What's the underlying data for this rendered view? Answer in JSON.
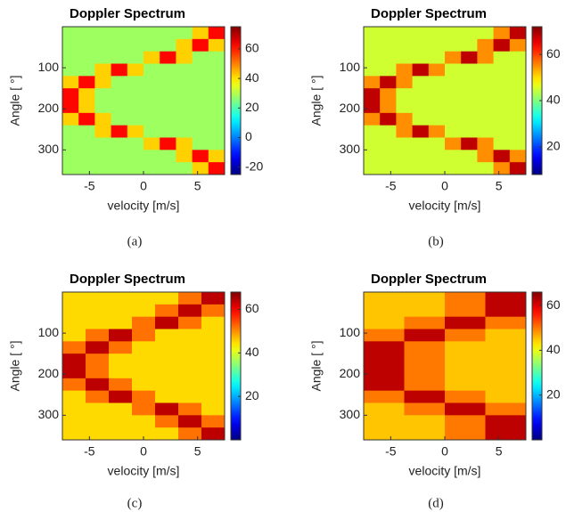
{
  "chart_data": [
    {
      "type": "heatmap",
      "title": "Doppler Spectrum",
      "x_label": "velocity [m/s]",
      "y_label": "Angle [ °]",
      "caption": "(a)",
      "xlim": [
        -7.5,
        7.5
      ],
      "xticks": [
        -5,
        0,
        5
      ],
      "ylim": [
        0,
        360
      ],
      "yticks": [
        100,
        200,
        300
      ],
      "y_inverted": true,
      "clim": [
        -25,
        75
      ],
      "cticks": [
        -20,
        0,
        20,
        40,
        60
      ],
      "values": [
        [
          28,
          28,
          28,
          28,
          28,
          28,
          28,
          28,
          42,
          62
        ],
        [
          28,
          28,
          28,
          28,
          28,
          28,
          28,
          42,
          62,
          42
        ],
        [
          28,
          28,
          28,
          28,
          28,
          42,
          62,
          42,
          28,
          28
        ],
        [
          28,
          28,
          42,
          62,
          42,
          28,
          28,
          28,
          28,
          28
        ],
        [
          42,
          62,
          42,
          28,
          28,
          28,
          28,
          28,
          28,
          28
        ],
        [
          62,
          42,
          28,
          28,
          28,
          28,
          28,
          28,
          28,
          28
        ],
        [
          62,
          42,
          28,
          28,
          28,
          28,
          28,
          28,
          28,
          28
        ],
        [
          42,
          62,
          42,
          28,
          28,
          28,
          28,
          28,
          28,
          28
        ],
        [
          28,
          28,
          42,
          62,
          42,
          28,
          28,
          28,
          28,
          28
        ],
        [
          28,
          28,
          28,
          28,
          28,
          42,
          62,
          42,
          28,
          28
        ],
        [
          28,
          28,
          28,
          28,
          28,
          28,
          28,
          42,
          62,
          42
        ],
        [
          28,
          28,
          28,
          28,
          28,
          28,
          28,
          28,
          42,
          62
        ]
      ]
    },
    {
      "type": "heatmap",
      "title": "Doppler Spectrum",
      "x_label": "velocity [m/s]",
      "y_label": "Angle [ °]",
      "caption": "(b)",
      "xlim": [
        -7.5,
        7.5
      ],
      "xticks": [
        -5,
        0,
        5
      ],
      "ylim": [
        0,
        360
      ],
      "yticks": [
        100,
        200,
        300
      ],
      "y_inverted": true,
      "clim": [
        8,
        72
      ],
      "cticks": [
        20,
        40,
        60
      ],
      "values": [
        [
          45,
          45,
          45,
          45,
          45,
          45,
          45,
          45,
          55,
          68
        ],
        [
          45,
          45,
          45,
          45,
          45,
          45,
          45,
          55,
          68,
          55
        ],
        [
          45,
          45,
          45,
          45,
          45,
          55,
          68,
          55,
          45,
          45
        ],
        [
          45,
          45,
          55,
          68,
          55,
          45,
          45,
          45,
          45,
          45
        ],
        [
          55,
          68,
          55,
          45,
          45,
          45,
          45,
          45,
          45,
          45
        ],
        [
          68,
          55,
          45,
          45,
          45,
          45,
          45,
          45,
          45,
          45
        ],
        [
          68,
          55,
          45,
          45,
          45,
          45,
          45,
          45,
          45,
          45
        ],
        [
          55,
          68,
          55,
          45,
          45,
          45,
          45,
          45,
          45,
          45
        ],
        [
          45,
          45,
          55,
          68,
          55,
          45,
          45,
          45,
          45,
          45
        ],
        [
          45,
          45,
          45,
          45,
          45,
          55,
          68,
          55,
          45,
          45
        ],
        [
          45,
          45,
          45,
          45,
          45,
          45,
          45,
          55,
          68,
          55
        ],
        [
          45,
          45,
          45,
          45,
          45,
          45,
          45,
          45,
          55,
          68
        ]
      ]
    },
    {
      "type": "heatmap",
      "title": "Doppler Spectrum",
      "x_label": "velocity [m/s]",
      "y_label": "Angle [ °]",
      "caption": "(c)",
      "xlim": [
        -7.5,
        7.5
      ],
      "xticks": [
        -5,
        0,
        5
      ],
      "ylim": [
        0,
        360
      ],
      "yticks": [
        100,
        200,
        300
      ],
      "y_inverted": true,
      "clim": [
        0,
        68
      ],
      "cticks": [
        20,
        40,
        60
      ],
      "values": [
        [
          45,
          45,
          45,
          45,
          45,
          52,
          64
        ],
        [
          45,
          45,
          45,
          45,
          52,
          64,
          52
        ],
        [
          45,
          45,
          45,
          52,
          64,
          52,
          45
        ],
        [
          45,
          52,
          64,
          52,
          45,
          45,
          45
        ],
        [
          52,
          64,
          52,
          45,
          45,
          45,
          45
        ],
        [
          64,
          52,
          45,
          45,
          45,
          45,
          45
        ],
        [
          64,
          52,
          45,
          45,
          45,
          45,
          45
        ],
        [
          52,
          64,
          52,
          45,
          45,
          45,
          45
        ],
        [
          45,
          52,
          64,
          52,
          45,
          45,
          45
        ],
        [
          45,
          45,
          45,
          52,
          64,
          52,
          45
        ],
        [
          45,
          45,
          45,
          45,
          52,
          64,
          52
        ],
        [
          45,
          45,
          45,
          45,
          45,
          52,
          64
        ]
      ]
    },
    {
      "type": "heatmap",
      "title": "Doppler Spectrum",
      "x_label": "velocity [m/s]",
      "y_label": "Angle [ °]",
      "caption": "(d)",
      "xlim": [
        -7.5,
        7.5
      ],
      "xticks": [
        -5,
        0,
        5
      ],
      "ylim": [
        0,
        360
      ],
      "yticks": [
        100,
        200,
        300
      ],
      "y_inverted": true,
      "clim": [
        0,
        66
      ],
      "cticks": [
        20,
        40,
        60
      ],
      "values": [
        [
          45,
          45,
          50,
          62
        ],
        [
          45,
          45,
          50,
          62
        ],
        [
          45,
          50,
          62,
          50
        ],
        [
          50,
          62,
          50,
          45
        ],
        [
          62,
          50,
          45,
          45
        ],
        [
          62,
          50,
          45,
          45
        ],
        [
          62,
          50,
          45,
          45
        ],
        [
          62,
          50,
          45,
          45
        ],
        [
          50,
          62,
          50,
          45
        ],
        [
          45,
          50,
          62,
          50
        ],
        [
          45,
          45,
          50,
          62
        ],
        [
          45,
          45,
          50,
          62
        ]
      ]
    }
  ]
}
